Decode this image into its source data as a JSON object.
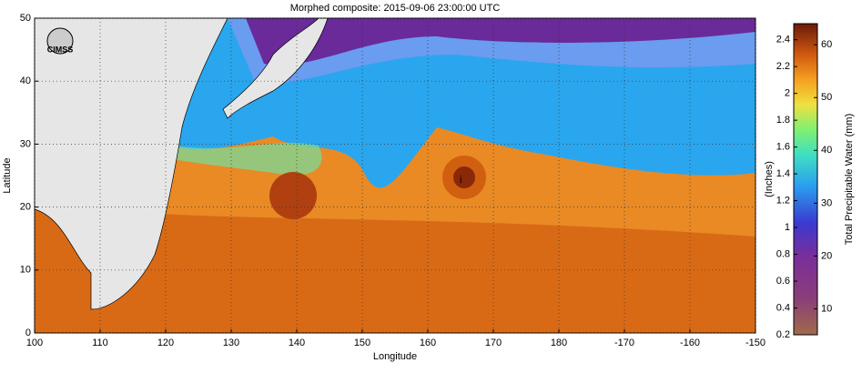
{
  "title": "Morphed composite: 2015-09-06 23:00:00 UTC",
  "logo": "CIMSS",
  "map": {
    "xlabel": "Longitude",
    "ylabel": "Latitude",
    "xlim": [
      100,
      210
    ],
    "ylim": [
      0,
      50
    ],
    "xticks": [
      100,
      110,
      120,
      130,
      140,
      150,
      160,
      170,
      180,
      {
        "value": 190,
        "label": "-170"
      },
      {
        "value": 200,
        "label": "-160"
      },
      {
        "value": 210,
        "label": "-150"
      }
    ],
    "yticks": [
      0,
      10,
      20,
      30,
      40,
      50
    ]
  },
  "colorbar": {
    "left_label": "(Inches)",
    "right_label": "Total Precipitable Water (mm)",
    "left_lim": [
      0.2,
      2.52
    ],
    "left_ticks": [
      0.2,
      0.4,
      0.6,
      0.8,
      1,
      1.2,
      1.4,
      1.6,
      1.8,
      2,
      2.2,
      2.4
    ],
    "right_lim": [
      5.08,
      64
    ],
    "right_ticks": [
      10,
      20,
      30,
      40,
      50,
      60
    ]
  }
}
